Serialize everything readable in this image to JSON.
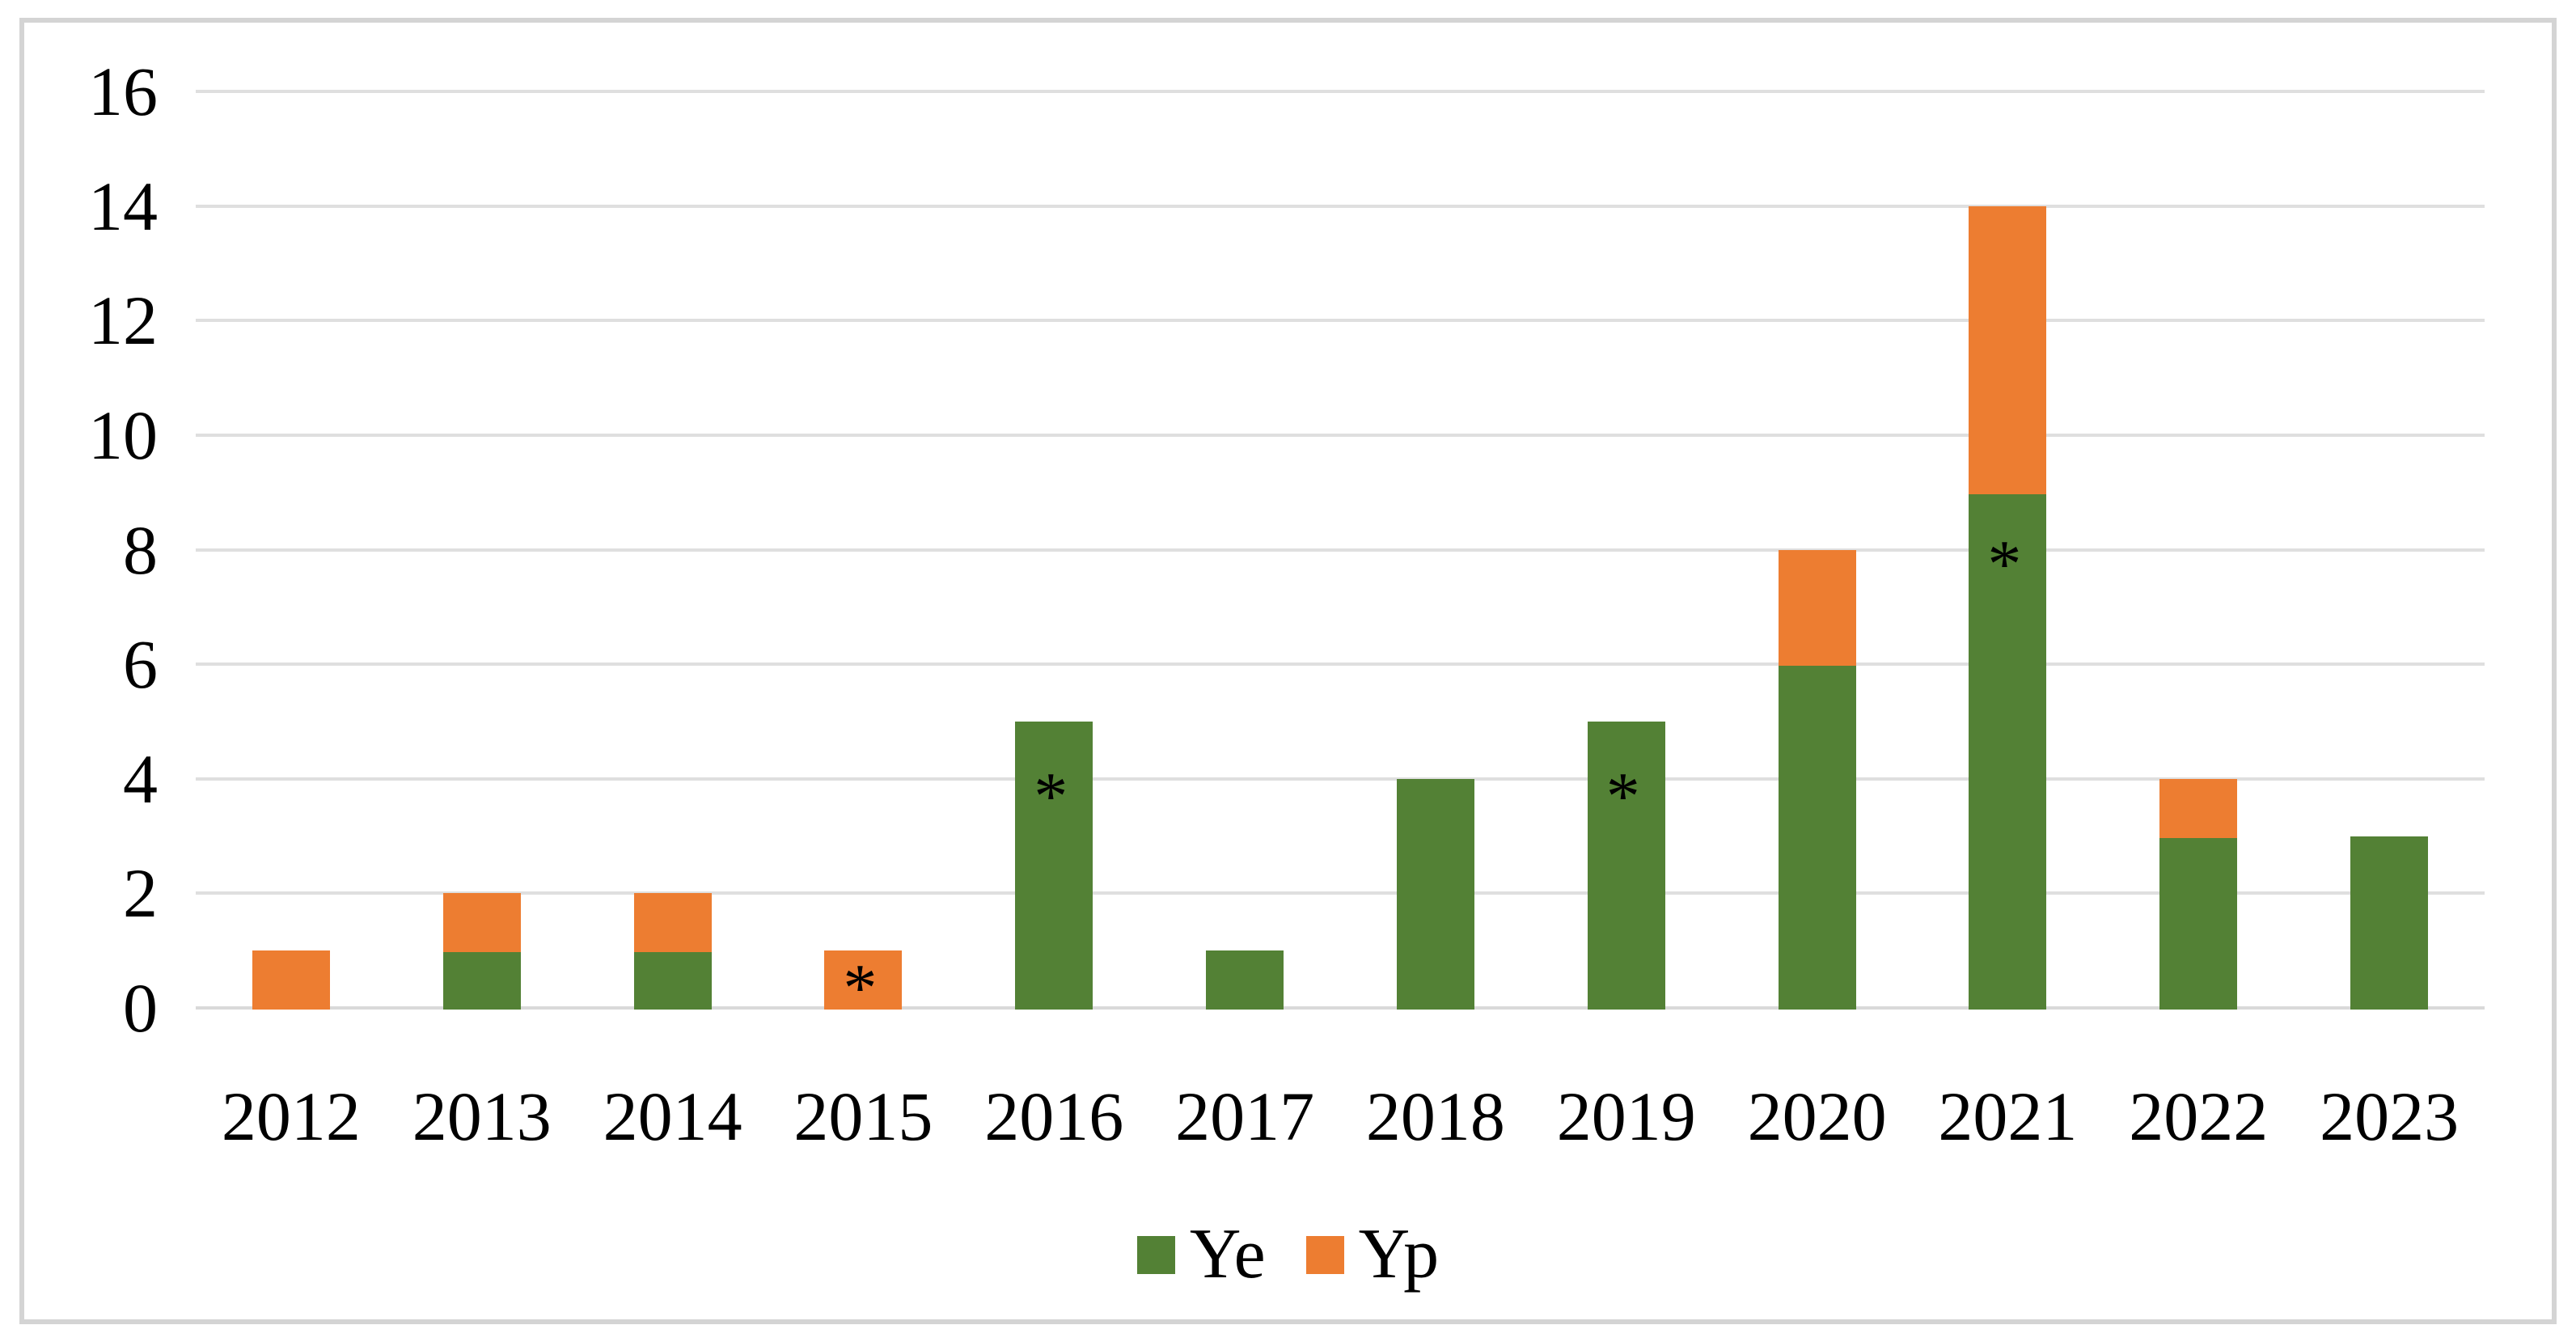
{
  "chart": {
    "background": "#FFFFFF",
    "frame_border_color": "#D4D4D4",
    "gridline_color": "#DFDFDF",
    "baseline_color": "#D9D9D9",
    "text_color": "#000000"
  },
  "chart_data": {
    "type": "bar",
    "stacked": true,
    "title": "",
    "xlabel": "",
    "ylabel": "",
    "categories": [
      "2012",
      "2013",
      "2014",
      "2015",
      "2016",
      "2017",
      "2018",
      "2019",
      "2020",
      "2021",
      "2022",
      "2023"
    ],
    "series": [
      {
        "name": "Ye",
        "color": "#538135",
        "values": [
          0,
          1,
          1,
          0,
          5,
          1,
          4,
          5,
          6,
          9,
          3,
          3
        ]
      },
      {
        "name": "Yp",
        "color": "#ED7D31",
        "values": [
          1,
          1,
          1,
          1,
          0,
          0,
          0,
          0,
          2,
          5,
          1,
          0
        ]
      }
    ],
    "totals": [
      1,
      2,
      2,
      1,
      5,
      1,
      4,
      5,
      8,
      14,
      4,
      3
    ],
    "annotations": [
      {
        "category": "2015",
        "value": 0.55,
        "text": "*"
      },
      {
        "category": "2016",
        "value": 3.9,
        "text": "*"
      },
      {
        "category": "2019",
        "value": 3.9,
        "text": "*"
      },
      {
        "category": "2021",
        "value": 7.95,
        "text": "*"
      }
    ],
    "ylim": [
      0,
      16
    ],
    "yticks": [
      "0",
      "2",
      "4",
      "6",
      "8",
      "10",
      "12",
      "14",
      "16"
    ],
    "ytick_step": 2,
    "grid": true,
    "legend_position": "bottom-center"
  }
}
